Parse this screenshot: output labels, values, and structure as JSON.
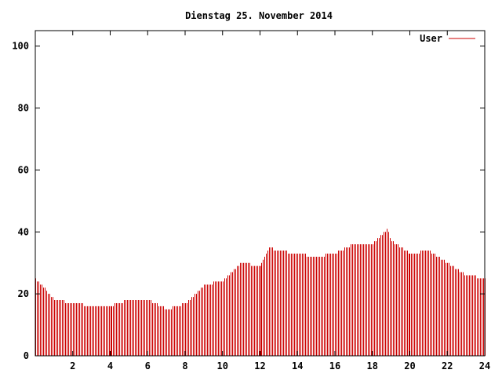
{
  "chart_data": {
    "type": "bar",
    "title": "Dienstag 25. November 2014",
    "xlabel": "",
    "ylabel": "",
    "xlim": [
      0,
      24
    ],
    "ylim": [
      0,
      105
    ],
    "grid": false,
    "legend_position": "top-right",
    "x_ticks": [
      "2",
      "4",
      "6",
      "8",
      "10",
      "12",
      "14",
      "16",
      "18",
      "20",
      "22",
      "24"
    ],
    "y_ticks": [
      "0",
      "20",
      "40",
      "60",
      "80",
      "100"
    ],
    "series": [
      {
        "name": "User",
        "color": "#cc0000",
        "x": [
          0,
          1,
          2,
          3,
          4,
          5,
          6,
          7,
          8,
          9,
          10,
          11,
          12,
          12.5,
          13,
          14,
          15,
          16,
          17,
          18,
          18.75,
          19,
          20,
          21,
          22,
          23,
          24
        ],
        "values": [
          25,
          18,
          17,
          16,
          16,
          18,
          18,
          15,
          17,
          23,
          24,
          30,
          29,
          35,
          34,
          33,
          32,
          33,
          36,
          36,
          41,
          37,
          33,
          34,
          30,
          26,
          25
        ]
      }
    ]
  }
}
